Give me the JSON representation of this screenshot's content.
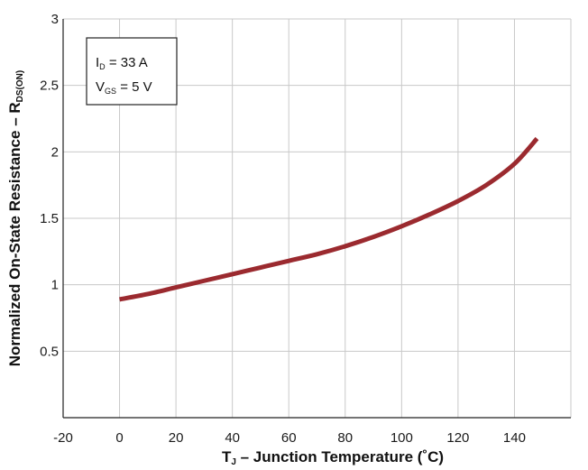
{
  "chart_data": {
    "type": "line",
    "title": "",
    "xlabel_main": "T",
    "xlabel_sub": "J",
    "xlabel_rest": " – Junction Temperature (˚C)",
    "ylabel_main": "Normalized On-State Resistance – R",
    "ylabel_sub": "DS(ON)",
    "xlim": [
      -20,
      160
    ],
    "ylim": [
      0,
      3
    ],
    "x_ticks": [
      -20,
      0,
      20,
      40,
      60,
      80,
      100,
      120,
      140
    ],
    "x_tick_labels": [
      "-20",
      "0",
      "20",
      "40",
      "60",
      "80",
      "100",
      "120",
      "140"
    ],
    "y_ticks": [
      0,
      0.5,
      1,
      1.5,
      2,
      2.5,
      3
    ],
    "y_tick_labels": [
      "",
      "0.5",
      "1",
      "1.5",
      "2",
      "2.5",
      "3"
    ],
    "grid": true,
    "legend_position": "top-left",
    "annotation": {
      "line1_main": "I",
      "line1_sub": "D",
      "line1_rest": " = 33 A",
      "line2_main": "V",
      "line2_sub": "GS",
      "line2_rest": " = 5 V"
    },
    "series": [
      {
        "color": "#9b2a2f",
        "x": [
          0,
          10,
          20,
          30,
          40,
          50,
          60,
          70,
          80,
          90,
          100,
          110,
          120,
          130,
          140,
          148
        ],
        "y": [
          0.89,
          0.93,
          0.98,
          1.03,
          1.08,
          1.13,
          1.18,
          1.23,
          1.29,
          1.36,
          1.44,
          1.53,
          1.63,
          1.75,
          1.91,
          2.1
        ]
      }
    ]
  }
}
